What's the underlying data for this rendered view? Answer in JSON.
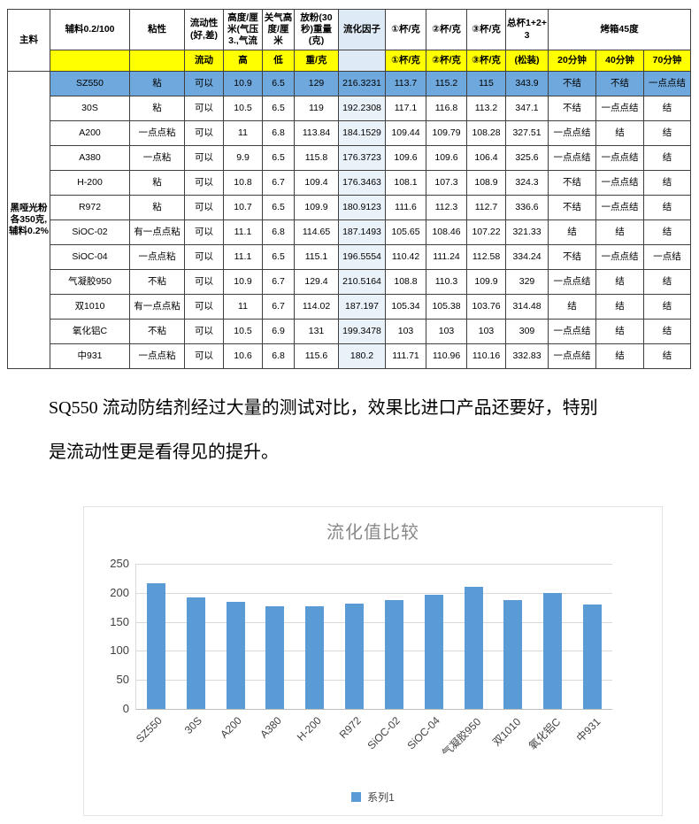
{
  "table": {
    "corner_label": "主料",
    "side_label": "黑哑光粉各350克,辅料0.2%",
    "h1": {
      "aux": "辅料0.2/100",
      "sticky": "粘性",
      "fluidity": "流动性(好,差)",
      "height": "高度/厘米(气压3.,气流",
      "close_height": "关气高度/厘米",
      "powder": "放粉(30秒)重量(克)",
      "factor": "流化因子",
      "cup1": "①杯/克",
      "cup2": "②杯/克",
      "cup3": "③杯/克",
      "total": "总杯1+2+3",
      "oven": "烤箱45度"
    },
    "h2": {
      "flow": "流动",
      "high": "高",
      "low": "低",
      "weight": "重/克",
      "cup1": "①杯/克",
      "cup2": "②杯/克",
      "cup3": "③杯/克",
      "loose": "(松装)",
      "m20": "20分钟",
      "m40": "40分钟",
      "m70": "70分钟"
    },
    "rows": [
      [
        "SZ550",
        "粘",
        "可以",
        "10.9",
        "6.5",
        "129",
        "216.3231",
        "113.7",
        "115.2",
        "115",
        "343.9",
        "不结",
        "不结",
        "一点点结"
      ],
      [
        "30S",
        "粘",
        "可以",
        "10.5",
        "6.5",
        "119",
        "192.2308",
        "117.1",
        "116.8",
        "113.2",
        "347.1",
        "不结",
        "一点点结",
        "结"
      ],
      [
        "A200",
        "一点点粘",
        "可以",
        "11",
        "6.8",
        "113.84",
        "184.1529",
        "109.44",
        "109.79",
        "108.28",
        "327.51",
        "一点点结",
        "结",
        "结"
      ],
      [
        "A380",
        "一点粘",
        "可以",
        "9.9",
        "6.5",
        "115.8",
        "176.3723",
        "109.6",
        "109.6",
        "106.4",
        "325.6",
        "一点点结",
        "一点点结",
        "结"
      ],
      [
        "H-200",
        "粘",
        "可以",
        "10.8",
        "6.7",
        "109.4",
        "176.3463",
        "108.1",
        "107.3",
        "108.9",
        "324.3",
        "不结",
        "一点点结",
        "结"
      ],
      [
        "R972",
        "粘",
        "可以",
        "10.7",
        "6.5",
        "109.9",
        "180.9123",
        "111.6",
        "112.3",
        "112.7",
        "336.6",
        "不结",
        "一点点结",
        "结"
      ],
      [
        "SiOC-02",
        "有一点点粘",
        "可以",
        "11.1",
        "6.8",
        "114.65",
        "187.1493",
        "105.65",
        "108.46",
        "107.22",
        "321.33",
        "结",
        "结",
        "结"
      ],
      [
        "SiOC-04",
        "一点点粘",
        "可以",
        "11.1",
        "6.5",
        "115.1",
        "196.5554",
        "110.42",
        "111.24",
        "112.58",
        "334.24",
        "不结",
        "一点点结",
        "一点结"
      ],
      [
        "气凝胶950",
        "不粘",
        "可以",
        "10.9",
        "6.7",
        "129.4",
        "210.5164",
        "108.8",
        "110.3",
        "109.9",
        "329",
        "一点点结",
        "结",
        "结"
      ],
      [
        "双1010",
        "有一点点粘",
        "可以",
        "11",
        "6.7",
        "114.02",
        "187.197",
        "105.34",
        "105.38",
        "103.76",
        "314.48",
        "结",
        "结",
        "结"
      ],
      [
        "氧化铝C",
        "不粘",
        "可以",
        "10.5",
        "6.9",
        "131",
        "199.3478",
        "103",
        "103",
        "103",
        "309",
        "一点点结",
        "结",
        "结"
      ],
      [
        "中931",
        "一点点粘",
        "可以",
        "10.6",
        "6.8",
        "115.6",
        "180.2",
        "111.71",
        "110.96",
        "110.16",
        "332.83",
        "一点点结",
        "结",
        "结"
      ]
    ],
    "highlight_row": 0,
    "colors": {
      "header2_bg": "#FFFF00",
      "header2_text": "#FF0000",
      "highlight_bg": "#6FA8DC",
      "fluid_header_bg": "#DEEAF5",
      "fluid_cell_bg": "#EAF2F9"
    }
  },
  "paragraph": "SQ550 流动防结剂经过大量的测试对比，效果比进口产品还要好，特别是流动性更是看得见的提升。",
  "chart_data": {
    "type": "bar",
    "title": "流化值比较",
    "categories": [
      "SZ550",
      "30S",
      "A200",
      "A380",
      "H-200",
      "R972",
      "SiOC-02",
      "SiOC-04",
      "气凝胶950",
      "双1010",
      "氧化铝C",
      "中931"
    ],
    "values": [
      216.3231,
      192.2308,
      184.1529,
      176.3723,
      176.3463,
      180.9123,
      187.1493,
      196.5554,
      210.5164,
      187.197,
      199.3478,
      180.2
    ],
    "xlabel": "",
    "ylabel": "",
    "ylim": [
      0,
      250
    ],
    "yticks": [
      0,
      50,
      100,
      150,
      200,
      250
    ],
    "grid": true,
    "legend": [
      "系列1"
    ],
    "legend_position": "bottom",
    "bar_color": "#5B9BD5",
    "grid_color": "#D9D9D9",
    "axis_color": "#BFBFBF",
    "title_color": "#898989"
  }
}
